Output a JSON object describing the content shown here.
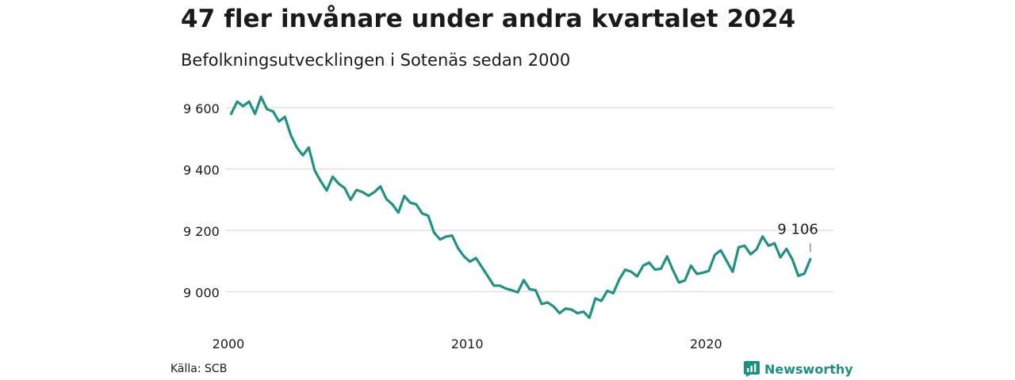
{
  "header": {
    "title": "47 fler invånare under andra kvartalet 2024",
    "subtitle": "Befolkningsutvecklingen i Sotenäs sedan 2000"
  },
  "footer": {
    "source": "Källa: SCB",
    "brand": "Newsworthy",
    "brand_icon": "chart-logo-icon"
  },
  "colors": {
    "line": "#1f9283",
    "grid": "#dddddd",
    "text": "#1a1a1a",
    "brand": "#1f8f80"
  },
  "chart_data": {
    "type": "line",
    "title": "47 fler invånare under andra kvartalet 2024",
    "subtitle": "Befolkningsutvecklingen i Sotenäs sedan 2000",
    "x_unit": "quarter",
    "xlim": [
      2000,
      2025.5
    ],
    "ylim": [
      8880,
      9680
    ],
    "y_ticks": [
      9000,
      9200,
      9400,
      9600
    ],
    "y_tick_labels": [
      "9 000",
      "9 200",
      "9 400",
      "9 600"
    ],
    "x_ticks": [
      2000,
      2010,
      2020
    ],
    "x_tick_labels": [
      "2000",
      "2010",
      "2020"
    ],
    "grid": true,
    "end_label": "9 106",
    "series": [
      {
        "x": [
          2000.25,
          2000.5,
          2000.75,
          2001.0,
          2001.25,
          2001.5,
          2001.75,
          2002.0,
          2002.25,
          2002.5,
          2002.75,
          2003.0,
          2003.25,
          2003.5,
          2003.75,
          2004.0,
          2004.25,
          2004.5,
          2004.75,
          2005.0,
          2005.25,
          2005.5,
          2005.75,
          2006.0,
          2006.25,
          2006.5,
          2006.75,
          2007.0,
          2007.25,
          2007.5,
          2007.75,
          2008.0,
          2008.25,
          2008.5,
          2008.75,
          2009.0,
          2009.25,
          2009.5,
          2009.75,
          2010.0,
          2010.25,
          2010.5,
          2010.75,
          2011.0,
          2011.25,
          2011.5,
          2011.75,
          2012.0,
          2012.25,
          2012.5,
          2012.75,
          2013.0,
          2013.25,
          2013.5,
          2013.75,
          2014.0,
          2014.25,
          2014.5,
          2014.75,
          2015.0,
          2015.25,
          2015.5,
          2015.75,
          2016.0,
          2016.25,
          2016.5,
          2016.75,
          2017.0,
          2017.25,
          2017.5,
          2017.75,
          2018.0,
          2018.25,
          2018.5,
          2018.75,
          2019.0,
          2019.25,
          2019.5,
          2019.75,
          2020.0,
          2020.25,
          2020.5,
          2020.75,
          2021.0,
          2021.25,
          2021.5,
          2021.75,
          2022.0,
          2022.25,
          2022.5,
          2022.75,
          2023.0,
          2023.25,
          2023.5,
          2023.75,
          2024.0,
          2024.25,
          2024.5
        ],
        "values": [
          9580,
          9620,
          9605,
          9620,
          9580,
          9635,
          9595,
          9588,
          9555,
          9570,
          9510,
          9470,
          9445,
          9470,
          9395,
          9360,
          9330,
          9375,
          9352,
          9338,
          9300,
          9332,
          9325,
          9313,
          9325,
          9343,
          9302,
          9285,
          9258,
          9312,
          9290,
          9285,
          9255,
          9248,
          9192,
          9170,
          9180,
          9183,
          9142,
          9115,
          9098,
          9110,
          9080,
          9050,
          9020,
          9020,
          9010,
          9005,
          8998,
          9038,
          9008,
          9005,
          8960,
          8965,
          8952,
          8930,
          8945,
          8942,
          8930,
          8935,
          8915,
          8978,
          8970,
          9003,
          8995,
          9040,
          9072,
          9065,
          9050,
          9085,
          9095,
          9072,
          9075,
          9115,
          9070,
          9030,
          9037,
          9085,
          9058,
          9062,
          9068,
          9120,
          9135,
          9100,
          9065,
          9145,
          9150,
          9122,
          9138,
          9180,
          9150,
          9158,
          9112,
          9140,
          9105,
          9052,
          9059,
          9106
        ]
      }
    ]
  }
}
